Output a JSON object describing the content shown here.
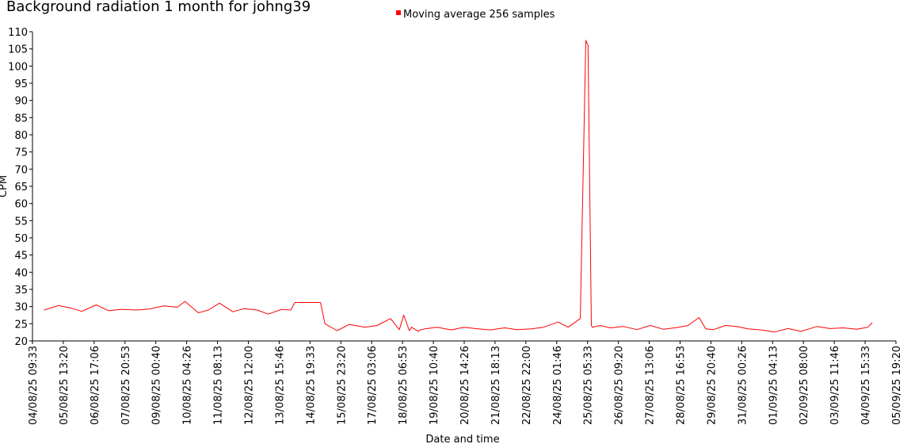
{
  "chart_data": {
    "type": "line",
    "title": "Background radiation 1 month for johng39",
    "xlabel": "Date and time",
    "ylabel": "CPM",
    "ylim": [
      20,
      110
    ],
    "y_ticks": [
      20,
      25,
      30,
      35,
      40,
      45,
      50,
      55,
      60,
      65,
      70,
      75,
      80,
      85,
      90,
      95,
      100,
      105,
      110
    ],
    "x_tick_labels": [
      "04/08/25 09:33",
      "05/08/25 13:20",
      "06/08/25 17:06",
      "07/08/25 20:53",
      "09/08/25 00:40",
      "10/08/25 04:26",
      "11/08/25 08:13",
      "12/08/25 12:00",
      "13/08/25 15:46",
      "14/08/25 19:33",
      "15/08/25 23:20",
      "17/08/25 03:06",
      "18/08/25 06:53",
      "19/08/25 10:40",
      "20/08/25 14:26",
      "21/08/25 18:13",
      "22/08/25 22:00",
      "24/08/25 01:46",
      "25/08/25 05:33",
      "26/08/25 09:20",
      "27/08/25 13:06",
      "28/08/25 16:53",
      "29/08/25 20:40",
      "31/08/25 00:26",
      "01/09/25 04:13",
      "02/09/25 08:00",
      "03/09/25 11:46",
      "04/09/25 15:33",
      "05/09/25 19:20"
    ],
    "legend": {
      "position": "top-center"
    },
    "grid": false,
    "series": [
      {
        "name": "Moving average 256 samples",
        "color": "#ff0000",
        "x": [
          "04/08/25 20:00",
          "05/08/25 09:00",
          "05/08/25 21:00",
          "06/08/25 06:00",
          "06/08/25 19:00",
          "07/08/25 06:00",
          "07/08/25 18:00",
          "08/08/25 07:00",
          "08/08/25 19:00",
          "09/08/25 08:00",
          "09/08/25 20:00",
          "10/08/25 03:00",
          "10/08/25 15:00",
          "11/08/25 00:00",
          "11/08/25 10:00",
          "11/08/25 22:00",
          "12/08/25 08:00",
          "12/08/25 20:00",
          "13/08/25 06:00",
          "13/08/25 18:00",
          "14/08/25 02:00",
          "14/08/25 06:00",
          "15/08/25 05:00",
          "15/08/25 09:00",
          "15/08/25 20:00",
          "16/08/25 07:00",
          "16/08/25 21:00",
          "17/08/25 08:00",
          "17/08/25 20:00",
          "18/08/25 04:00",
          "18/08/25 08:00",
          "18/08/25 13:00",
          "18/08/25 15:00",
          "18/08/25 21:00",
          "18/08/25 23:00",
          "19/08/25 03:00",
          "19/08/25 14:00",
          "20/08/25 03:00",
          "20/08/25 14:00",
          "21/08/25 03:00",
          "21/08/25 14:00",
          "22/08/25 03:00",
          "22/08/25 14:00",
          "23/08/25 03:00",
          "23/08/25 14:00",
          "24/08/25 03:00",
          "24/08/25 12:00",
          "24/08/25 23:00",
          "25/08/25 04:00",
          "25/08/25 06:00",
          "25/08/25 09:00",
          "25/08/25 10:00",
          "25/08/25 17:00",
          "26/08/25 02:00",
          "26/08/25 14:00",
          "27/08/25 02:00",
          "27/08/25 14:00",
          "28/08/25 02:00",
          "28/08/25 14:00",
          "29/08/25 00:00",
          "29/08/25 10:00",
          "29/08/25 16:00",
          "29/08/25 23:00",
          "30/08/25 10:00",
          "30/08/25 20:00",
          "31/08/25 06:00",
          "31/08/25 18:00",
          "01/09/25 06:00",
          "01/09/25 18:00",
          "02/09/25 06:00",
          "02/09/25 20:00",
          "03/09/25 08:00",
          "03/09/25 20:00",
          "04/09/25 08:00",
          "04/09/25 18:00",
          "04/09/25 22:00"
        ],
        "y": [
          29.0,
          30.3,
          29.5,
          28.6,
          30.5,
          28.8,
          29.2,
          29.0,
          29.3,
          30.2,
          29.8,
          31.5,
          28.2,
          29.0,
          31.0,
          28.5,
          29.4,
          29.0,
          27.8,
          29.2,
          29.0,
          31.2,
          31.2,
          25.0,
          23.0,
          24.8,
          24.0,
          24.5,
          26.5,
          23.3,
          27.5,
          23.0,
          24.0,
          22.8,
          23.2,
          23.5,
          24.0,
          23.2,
          24.0,
          23.5,
          23.2,
          23.8,
          23.3,
          23.5,
          24.0,
          25.5,
          24.0,
          26.5,
          107.5,
          106.0,
          24.5,
          24.0,
          24.5,
          23.8,
          24.2,
          23.3,
          24.5,
          23.4,
          23.9,
          24.5,
          26.8,
          23.5,
          23.3,
          24.5,
          24.2,
          23.5,
          23.2,
          22.6,
          23.6,
          22.8,
          24.2,
          23.6,
          23.8,
          23.4,
          24.0,
          25.3
        ]
      }
    ]
  }
}
